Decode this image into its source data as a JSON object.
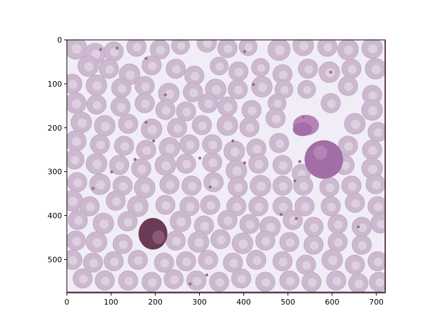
{
  "figure": {
    "background": "#ffffff",
    "image_background": "#f1edf7",
    "cell_fill": "#cdb9cf",
    "cell_center": "#ddd0df",
    "cell_outline": "#c2aac6",
    "nucleus_dark": "#6b3a55",
    "nucleus_medium": "#a36ea5",
    "nucleus_light": "#b584b6",
    "speck": "#9b6a93"
  },
  "axes": {
    "x_ticks": [
      "0",
      "100",
      "200",
      "300",
      "400",
      "500",
      "600",
      "700"
    ],
    "y_ticks": [
      "0",
      "100",
      "200",
      "300",
      "400",
      "500"
    ],
    "xlim": [
      0,
      720
    ],
    "ylim": [
      0,
      576
    ]
  }
}
